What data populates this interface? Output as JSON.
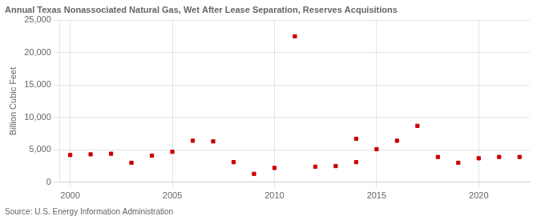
{
  "chart_data": {
    "type": "scatter",
    "title": "Annual Texas Nonassociated Natural Gas, Wet After Lease Separation, Reserves Acquisitions",
    "ylabel": "Billion Cubic Feet",
    "source": "Source: U.S. Energy Information Administration",
    "x": [
      2000,
      2001,
      2002,
      2003,
      2004,
      2005,
      2006,
      2007,
      2008,
      2009,
      2010,
      2011,
      2012,
      2013,
      2014,
      2014,
      2015,
      2016,
      2017,
      2018,
      2019,
      2020,
      2021,
      2022
    ],
    "values": [
      4200,
      4300,
      4400,
      3000,
      4100,
      4700,
      6400,
      6300,
      3100,
      1300,
      2200,
      22500,
      2400,
      2500,
      3100,
      6700,
      5100,
      6400,
      8700,
      3900,
      3000,
      3700,
      3900,
      3900
    ],
    "color": "#cc0000",
    "marker": "square",
    "xlim": [
      1999.5,
      2022.5
    ],
    "xticks": [
      2000,
      2005,
      2010,
      2015,
      2020
    ],
    "ylim": [
      0,
      25000
    ],
    "yticks": [
      0,
      {
        "value": 5000,
        "label": "5,000"
      },
      {
        "value": 10000,
        "label": "10,000"
      },
      {
        "value": 15000,
        "label": "15,000"
      },
      {
        "value": 20000,
        "label": "20,000"
      },
      {
        "value": 25000,
        "label": "25,000"
      }
    ],
    "grid": true
  }
}
